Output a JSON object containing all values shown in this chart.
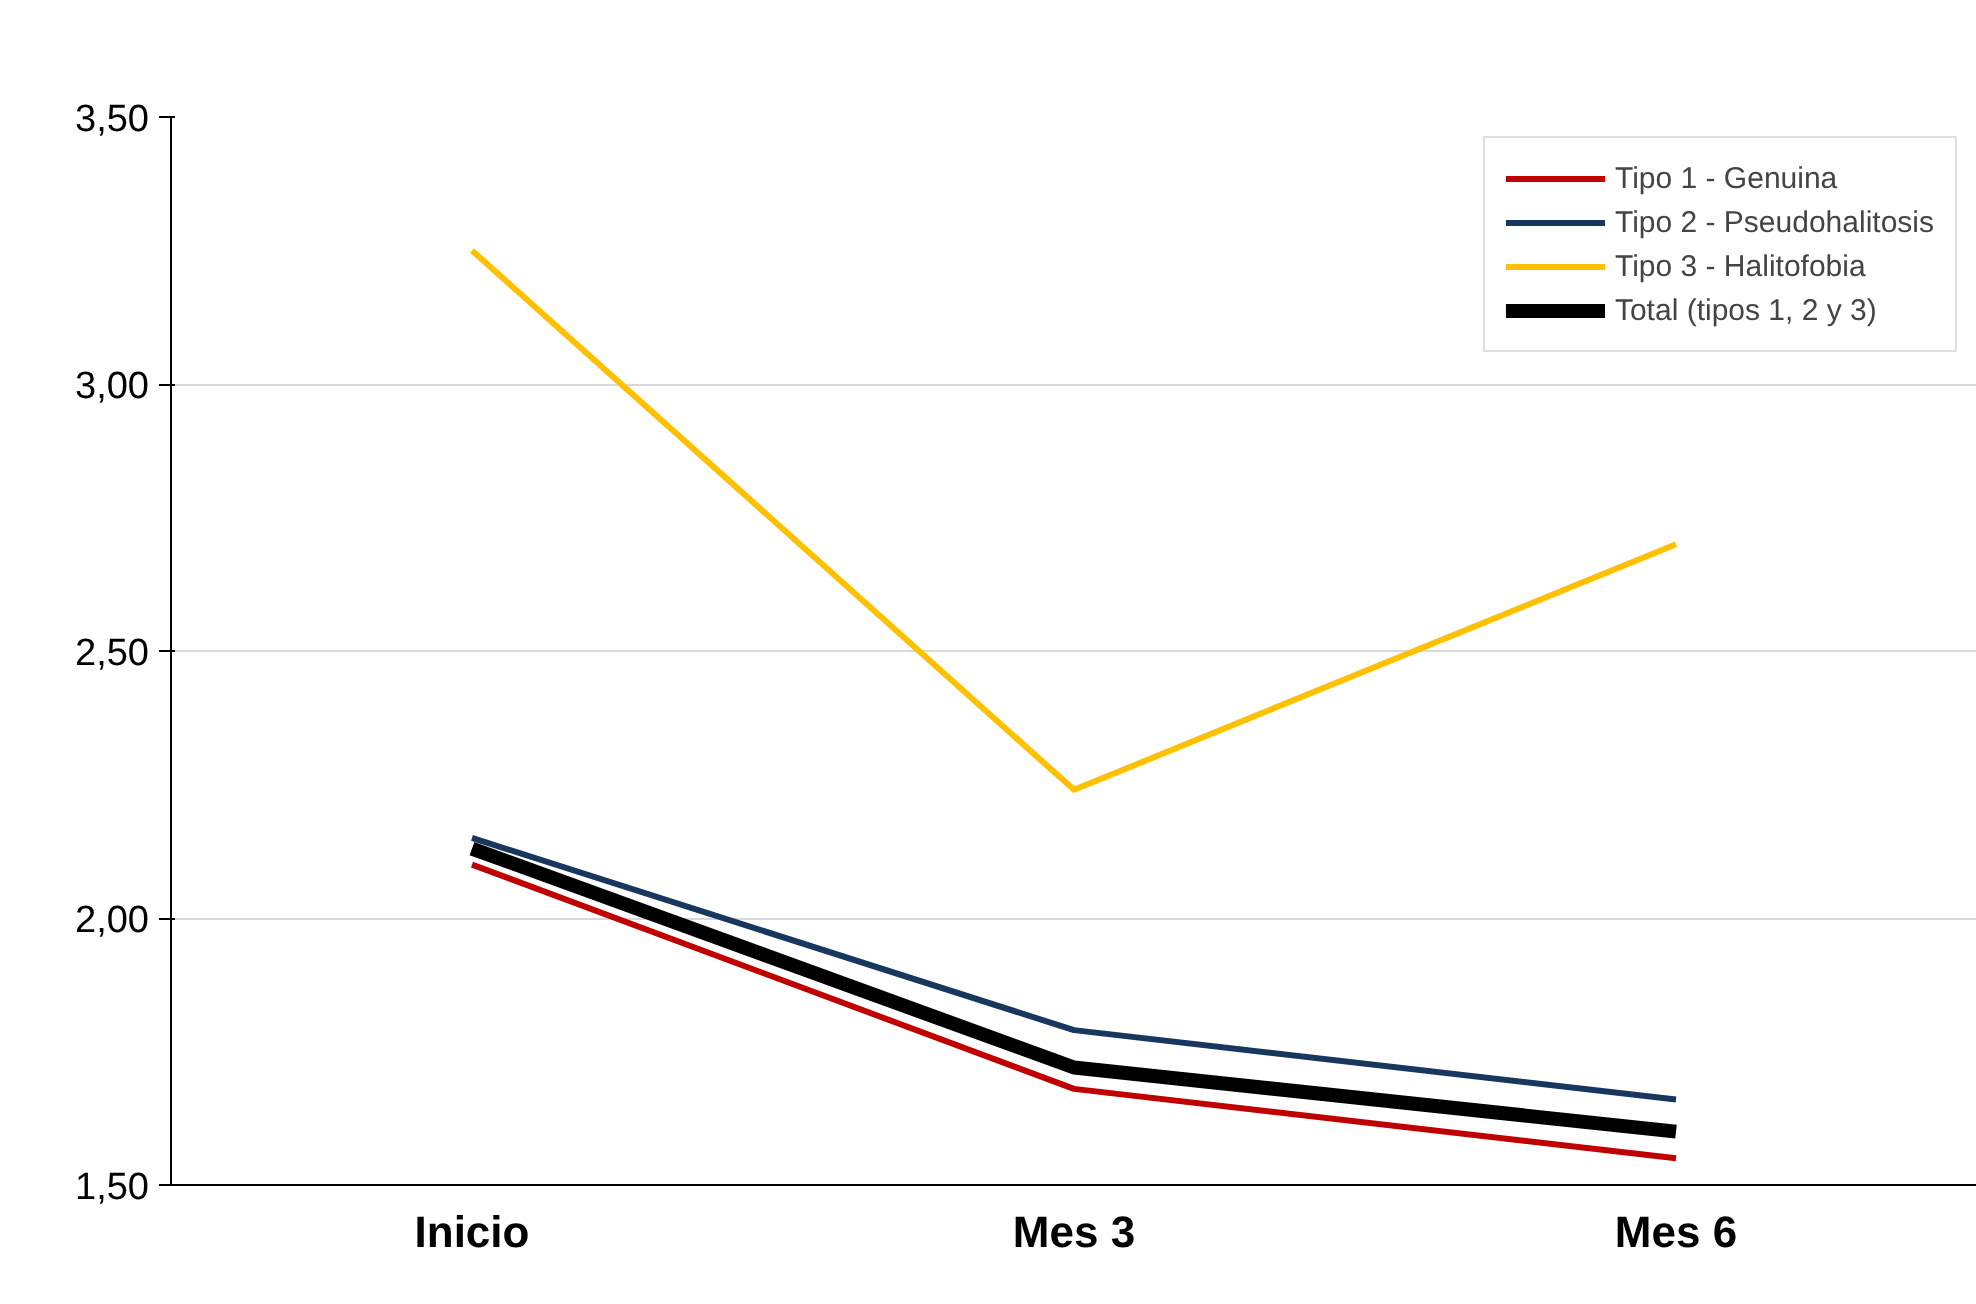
{
  "chart_data": {
    "type": "line",
    "categories": [
      "Inicio",
      "Mes 3",
      "Mes 6"
    ],
    "ylim": [
      1.5,
      3.5
    ],
    "yticks": [
      {
        "value": 1.5,
        "label": "1,50"
      },
      {
        "value": 2.0,
        "label": "2,00"
      },
      {
        "value": 2.5,
        "label": "2,50"
      },
      {
        "value": 3.0,
        "label": "3,00"
      },
      {
        "value": 3.5,
        "label": "3,50"
      }
    ],
    "grid": "y",
    "legend": "top right",
    "marker": "none",
    "line_style": "solid",
    "series": [
      {
        "name": "Tipo 1 - Genuina",
        "color": "#c00000",
        "values": [
          2.1,
          1.68,
          1.55
        ]
      },
      {
        "name": "Tipo 2 - Pseudohalitosis",
        "color": "#17375e",
        "values": [
          2.15,
          1.79,
          1.66
        ]
      },
      {
        "name": "Tipo 3 - Halitofobia",
        "color": "#ffc000",
        "values": [
          3.25,
          2.24,
          2.7
        ]
      },
      {
        "name": "Total (tipos 1, 2 y 3)",
        "color": "#000000",
        "values": [
          2.13,
          1.72,
          1.6
        ]
      }
    ]
  }
}
